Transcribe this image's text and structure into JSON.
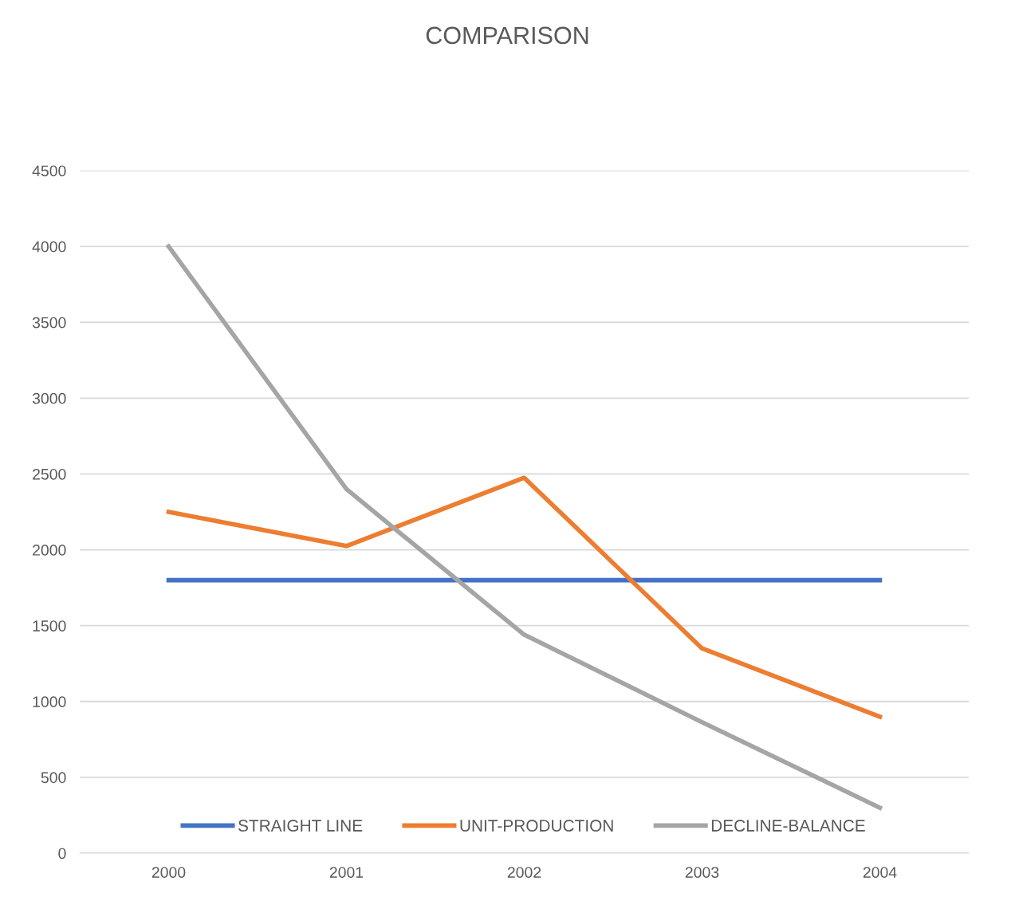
{
  "chart_data": {
    "type": "line",
    "title": "COMPARISON",
    "categories": [
      "2000",
      "2001",
      "2002",
      "2003",
      "2004"
    ],
    "series": [
      {
        "name": "STRAIGHT LINE",
        "color": "#4472c4",
        "values": [
          1800,
          1800,
          1800,
          1800,
          1800
        ]
      },
      {
        "name": "UNIT-PRODUCTION",
        "color": "#ed7d31",
        "values": [
          2250,
          2025,
          2475,
          1350,
          900
        ]
      },
      {
        "name": "DECLINE-BALANCE",
        "color": "#a5a5a5",
        "values": [
          4000,
          2400,
          1440,
          864,
          300
        ]
      }
    ],
    "ylim": [
      0,
      4500
    ],
    "yticks": [
      0,
      500,
      1000,
      1500,
      2000,
      2500,
      3000,
      3500,
      4000,
      4500
    ],
    "grid": "y",
    "legend": "bottom",
    "marker": "none",
    "line_style": "solid"
  }
}
